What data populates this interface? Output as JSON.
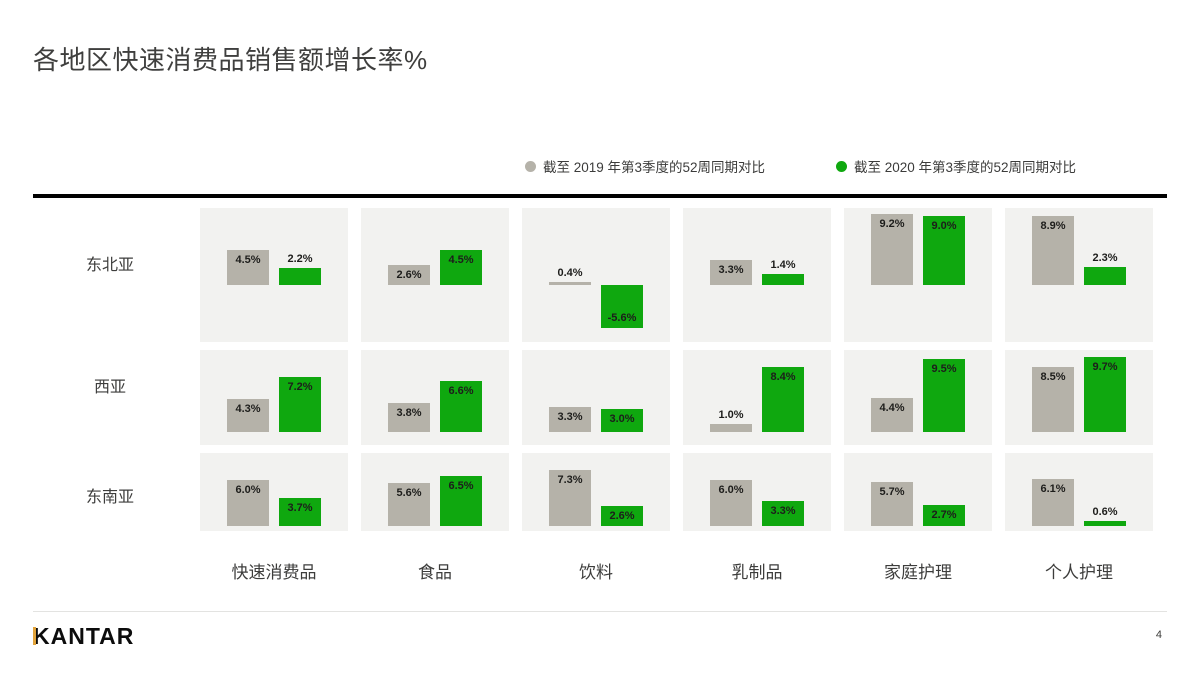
{
  "title": "各地区快速消费品销售额增长率%",
  "legend": [
    {
      "label": "截至 2019 年第3季度的52周同期对比",
      "color": "#b5b2a9"
    },
    {
      "label": "截至 2020 年第3季度的52周同期对比",
      "color": "#0fa80f"
    }
  ],
  "colors": {
    "series_2019": "#b5b2a9",
    "series_2020": "#0fa80f",
    "cell_background": "#f2f2f0",
    "rule": "#000000",
    "label_text": "#1d1d1b",
    "logo_accent": "#e2a43c"
  },
  "chart_data": {
    "type": "bar",
    "title": "各地区快速消费品销售额增长率%",
    "categories": [
      "快速消费品",
      "食品",
      "饮料",
      "乳制品",
      "家庭护理",
      "个人护理"
    ],
    "regions": [
      "东北亚",
      "西亚",
      "东南亚"
    ],
    "unit": "%",
    "value_labels": true,
    "legend_position": "top-right",
    "series": [
      {
        "name": "截至 2019 年第3季度的52周同期对比",
        "color": "#b5b2a9",
        "values_by_region": [
          [
            4.5,
            2.6,
            0.4,
            3.3,
            9.2,
            8.9
          ],
          [
            4.3,
            3.8,
            3.3,
            1.0,
            4.4,
            8.5
          ],
          [
            6.0,
            5.6,
            7.3,
            6.0,
            5.7,
            6.1
          ]
        ]
      },
      {
        "name": "截至 2020 年第3季度的52周同期对比",
        "color": "#0fa80f",
        "values_by_region": [
          [
            2.2,
            4.5,
            -5.6,
            1.4,
            9.0,
            2.3
          ],
          [
            7.2,
            6.6,
            3.0,
            8.4,
            9.5,
            9.7
          ],
          [
            3.7,
            6.5,
            2.6,
            3.3,
            2.7,
            0.6
          ]
        ]
      }
    ]
  },
  "footer": {
    "logo": "KANTAR",
    "page_number": "4"
  }
}
